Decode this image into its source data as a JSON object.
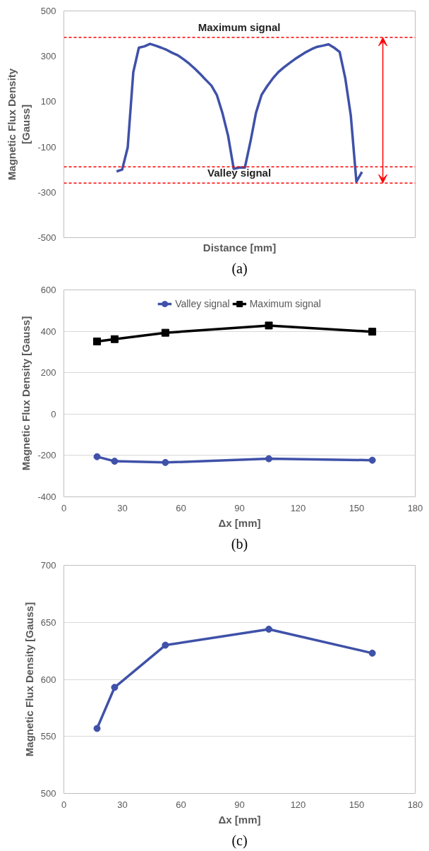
{
  "chart_data": [
    {
      "type": "line",
      "xlabel": "Distance [mm]",
      "ylabel": "Magnetic Flux Density\n[Gauss]",
      "annotations": [
        "(a)"
      ],
      "categories": [
        null,
        null,
        null,
        null,
        null,
        null,
        null,
        null,
        null,
        null,
        null,
        null,
        null,
        null,
        null,
        null,
        null,
        null,
        null,
        null,
        null,
        null,
        null,
        null,
        null,
        null,
        null,
        null,
        null,
        null,
        null,
        null,
        null,
        null,
        null,
        null,
        null,
        null,
        null,
        null,
        null,
        null,
        null,
        null,
        null
      ],
      "series": [
        {
          "color": "#3f51a8",
          "values": [
            -208,
            -200,
            -102,
            230,
            338,
            344,
            355,
            347,
            338,
            328,
            315,
            304,
            287,
            268,
            246,
            222,
            196,
            171,
            128,
            48,
            -51,
            -196,
            -191,
            -191,
            -77,
            51,
            130,
            168,
            202,
            230,
            251,
            270,
            288,
            304,
            319,
            332,
            342,
            347,
            353,
            338,
            319,
            204,
            38,
            -253,
            -210
          ]
        }
      ],
      "ref_lines": [
        {
          "axis": "y",
          "value": 383,
          "label": "Maximum signal",
          "color": "#ff0000",
          "line_style": "dashed"
        },
        {
          "axis": "y",
          "value": -259,
          "label": "Valley signal",
          "color": "#ff0000",
          "line_style": "dashed"
        },
        {
          "axis": "y",
          "value": -188,
          "color": "#ff0000",
          "line_style": "dashed"
        }
      ],
      "ylim": [
        -500,
        500
      ],
      "yticks": [
        -500,
        -300,
        -100,
        100,
        300,
        500
      ],
      "grid": false,
      "marker": "none",
      "tick_labels": "y"
    },
    {
      "type": "line",
      "xlabel": "Δx [mm]",
      "ylabel": "Magnetic Flux Density [Gauss]",
      "annotations": [
        "(b)"
      ],
      "x": [
        17,
        26,
        52,
        105,
        158
      ],
      "series": [
        {
          "name": "Valley signal",
          "color": "#3f51a8",
          "marker": "circle",
          "values": [
            -206,
            -228,
            -234,
            -216,
            -223
          ]
        },
        {
          "name": "Maximum signal",
          "color": "#000000",
          "marker": "square",
          "values": [
            351,
            362,
            393,
            428,
            398
          ]
        }
      ],
      "xlim": [
        0,
        180
      ],
      "xticks": [
        0,
        30,
        60,
        90,
        120,
        150,
        180
      ],
      "ylim": [
        -400,
        600
      ],
      "yticks": [
        -400,
        -200,
        0,
        200,
        400,
        600
      ],
      "grid": "y",
      "legend": "top"
    },
    {
      "type": "line",
      "xlabel": "Δx [mm]",
      "ylabel": "Magnetic Flux Density [Gauss]",
      "annotations": [
        "(c)"
      ],
      "x": [
        17,
        26,
        52,
        105,
        158
      ],
      "series": [
        {
          "color": "#3f51a8",
          "values": [
            557,
            593,
            630,
            644,
            623
          ]
        }
      ],
      "xlim": [
        0,
        180
      ],
      "xticks": [
        0,
        30,
        60,
        90,
        120,
        150,
        180
      ],
      "ylim": [
        500,
        700
      ],
      "yticks": [
        500,
        550,
        600,
        650,
        700
      ],
      "grid": "y",
      "marker": "circle"
    }
  ]
}
